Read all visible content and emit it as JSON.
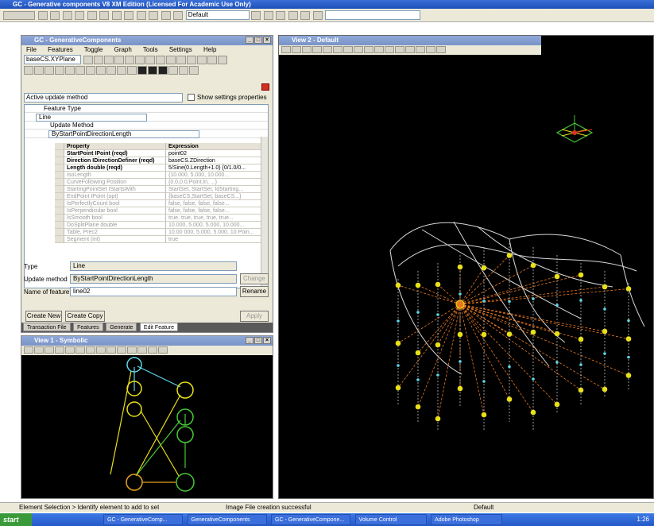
{
  "app": {
    "title": "GC - Generative components V8 XM Edition (Licensed For Academic Use Only)",
    "toolbar_combo": "Default"
  },
  "gc_window": {
    "title": "GC - GenerativeComponents",
    "menus": [
      "File",
      "Features",
      "Toggle",
      "Graph",
      "Tools",
      "Settings",
      "Help"
    ],
    "feature_combo": "baseCS.XYPlane",
    "update_combo": "Active update method",
    "show_settings_label": "Show settings properties",
    "feature_type_label": "Feature Type",
    "feature_type_value": "Line",
    "update_method_label": "Update Method",
    "update_method_value": "ByStartPointDirectionLength",
    "grid_headers": {
      "property": "Property",
      "expression": "Expression"
    },
    "grid_rows": [
      {
        "property": "StartPoint IPoint (reqd)",
        "expression": "point02",
        "active": true
      },
      {
        "property": "Direction IDirectionDefiner (reqd)",
        "expression": "baseCS.ZDirection",
        "active": true
      },
      {
        "property": "Length double (reqd)",
        "expression": "5/Sine(0.Length+1.0) {0/1.0/0...",
        "active": true
      },
      {
        "property": "IsoLength",
        "expression": "{10.000, 5.000, 10.000...",
        "active": false
      },
      {
        "property": "CurveFollowing Position",
        "expression": "{0.0,0.0,Point.ln, ...}",
        "active": false
      },
      {
        "property": "StartingPointSet IStartsWith",
        "expression": "StartSet, StartSet, IdStarting...",
        "active": false
      },
      {
        "property": "EndPoint IPoint (opt)",
        "expression": "{baseCS,StartSet, baseCS...}",
        "active": false
      },
      {
        "property": "IsPerfectlyCount bool",
        "expression": "false, false, false, false...",
        "active": false
      },
      {
        "property": "IsPerpendicular bool",
        "expression": "false, false, false, false...",
        "active": false
      },
      {
        "property": "IsSmooth bool",
        "expression": "true, true, true, true, true...",
        "active": false
      },
      {
        "property": "DoSplitPlane double",
        "expression": "10.000, 5.000, 5.000, 10.000...",
        "active": false
      },
      {
        "property": "Table, Prec2",
        "expression": "10.00 000, 5.000, 5.000, 10 Poin...",
        "active": false
      },
      {
        "property": "Segment (int)",
        "expression": "true",
        "active": false
      }
    ],
    "type_label": "Type",
    "type_value": "Line",
    "update_label": "Update method",
    "update_value": "ByStartPointDirectionLength",
    "name_label": "Name of feature",
    "name_value": "line02",
    "rename_button": "Rename",
    "change_button": "Change",
    "create_new_button": "Create New",
    "create_copy_button": "Create Copy",
    "apply_button": "Apply",
    "tabs": [
      "Transaction File",
      "Features",
      "Generate",
      "Edit Feature"
    ],
    "active_tab": "Edit Feature"
  },
  "symbolic_window": {
    "title": "View 1 - Symbolic"
  },
  "view_window": {
    "title": "View 2 - Default"
  },
  "status_bar": {
    "left": "Element Selection > Identify element to add to set",
    "center": "Image File creation successful",
    "right": "Default"
  },
  "taskbar": {
    "start": "start",
    "items": [
      "GC - GenerativeComp...",
      "GenerativeComponents",
      "GC - GenerativeCompone...",
      "Volume Control",
      "Adobe Photoshop"
    ],
    "clock": "1:26"
  },
  "colors": {
    "titlebar": "#1d4fb8",
    "chrome": "#ece9d8",
    "node_yellow": "#e8e018",
    "node_cyan": "#5fd8e8",
    "node_green": "#48c838",
    "line_orange": "#e87820",
    "surface_white": "#d8d8d8"
  }
}
